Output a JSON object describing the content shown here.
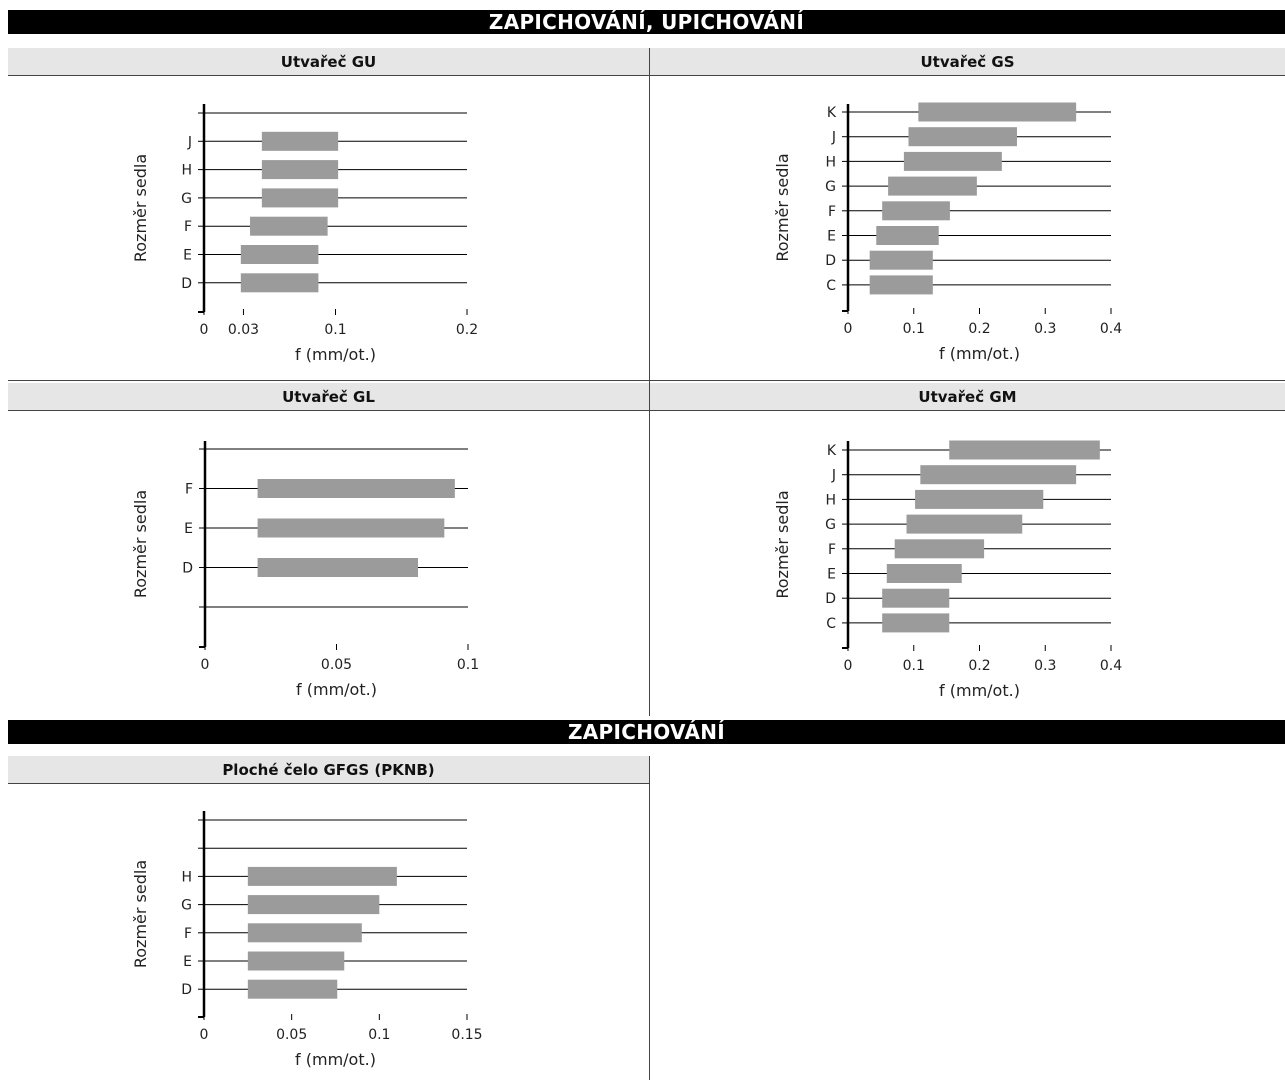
{
  "headers": {
    "section1": "ZAPICHOVÁNÍ, UPICHOVÁNÍ",
    "section2": "ZAPICHOVÁNÍ"
  },
  "panels": {
    "gu": "Utvařeč GU",
    "gs": "Utvařeč GS",
    "gl": "Utvařeč GL",
    "gm": "Utvařeč GM",
    "gfgs": "Ploché čelo GFGS (PKNB)"
  },
  "chart_data": [
    {
      "id": "gu",
      "type": "bar",
      "orientation": "horizontal-range",
      "title": "Utvařeč GU",
      "xlabel": "f (mm/ot.)",
      "ylabel": "Rozměr sedla",
      "categories": [
        "",
        "J",
        "H",
        "G",
        "F",
        "E",
        "D"
      ],
      "ranges": [
        null,
        [
          0.044,
          0.102
        ],
        [
          0.044,
          0.102
        ],
        [
          0.044,
          0.102
        ],
        [
          0.035,
          0.094
        ],
        [
          0.028,
          0.087
        ],
        [
          0.028,
          0.087
        ]
      ],
      "xlim": [
        0,
        0.2
      ],
      "xticks": [
        0,
        0.03,
        0.1,
        0.2
      ],
      "xtick_labels": [
        "0",
        "0.03",
        "0.1",
        "0.2"
      ]
    },
    {
      "id": "gs",
      "type": "bar",
      "orientation": "horizontal-range",
      "title": "Utvařeč GS",
      "xlabel": "f (mm/ot.)",
      "ylabel": "Rozměr sedla",
      "categories": [
        "K",
        "J",
        "H",
        "G",
        "F",
        "E",
        "D",
        "C"
      ],
      "ranges": [
        [
          0.107,
          0.347
        ],
        [
          0.092,
          0.257
        ],
        [
          0.085,
          0.234
        ],
        [
          0.061,
          0.196
        ],
        [
          0.052,
          0.155
        ],
        [
          0.043,
          0.138
        ],
        [
          0.033,
          0.129
        ],
        [
          0.033,
          0.129
        ]
      ],
      "xlim": [
        0,
        0.4
      ],
      "xticks": [
        0,
        0.1,
        0.2,
        0.3,
        0.4
      ],
      "xtick_labels": [
        "0",
        "0.1",
        "0.2",
        "0.3",
        "0.4"
      ]
    },
    {
      "id": "gl",
      "type": "bar",
      "orientation": "horizontal-range",
      "title": "Utvařeč GL",
      "xlabel": "f (mm/ot.)",
      "ylabel": "Rozměr sedla",
      "categories": [
        "",
        "F",
        "E",
        "D",
        ""
      ],
      "ranges": [
        null,
        [
          0.02,
          0.095
        ],
        [
          0.02,
          0.091
        ],
        [
          0.02,
          0.081
        ],
        null
      ],
      "xlim": [
        0,
        0.1
      ],
      "xticks": [
        0,
        0.05,
        0.1
      ],
      "xtick_labels": [
        "0",
        "0.05",
        "0.1"
      ]
    },
    {
      "id": "gm",
      "type": "bar",
      "orientation": "horizontal-range",
      "title": "Utvařeč GM",
      "xlabel": "f (mm/ot.)",
      "ylabel": "Rozměr sedla",
      "categories": [
        "K",
        "J",
        "H",
        "G",
        "F",
        "E",
        "D",
        "C"
      ],
      "ranges": [
        [
          0.154,
          0.383
        ],
        [
          0.11,
          0.347
        ],
        [
          0.102,
          0.297
        ],
        [
          0.089,
          0.265
        ],
        [
          0.071,
          0.207
        ],
        [
          0.059,
          0.173
        ],
        [
          0.052,
          0.154
        ],
        [
          0.052,
          0.154
        ]
      ],
      "xlim": [
        0,
        0.4
      ],
      "xticks": [
        0,
        0.1,
        0.2,
        0.3,
        0.4
      ],
      "xtick_labels": [
        "0",
        "0.1",
        "0.2",
        "0.3",
        "0.4"
      ]
    },
    {
      "id": "gfgs",
      "type": "bar",
      "orientation": "horizontal-range",
      "title": "Ploché čelo GFGS (PKNB)",
      "xlabel": "f (mm/ot.)",
      "ylabel": "Rozměr sedla",
      "categories": [
        "",
        "",
        "H",
        "G",
        "F",
        "E",
        "D"
      ],
      "ranges": [
        null,
        null,
        [
          0.025,
          0.11
        ],
        [
          0.025,
          0.1
        ],
        [
          0.025,
          0.09
        ],
        [
          0.025,
          0.08
        ],
        [
          0.025,
          0.076
        ]
      ],
      "xlim": [
        0,
        0.15
      ],
      "xticks": [
        0,
        0.05,
        0.1,
        0.15
      ],
      "xtick_labels": [
        "0",
        "0.05",
        "0.1",
        "0.15"
      ]
    }
  ],
  "colors": {
    "bar": "#9b9b9b",
    "axis": "#000000",
    "header_bg": "#000000",
    "subheader_bg": "#e6e6e6"
  }
}
